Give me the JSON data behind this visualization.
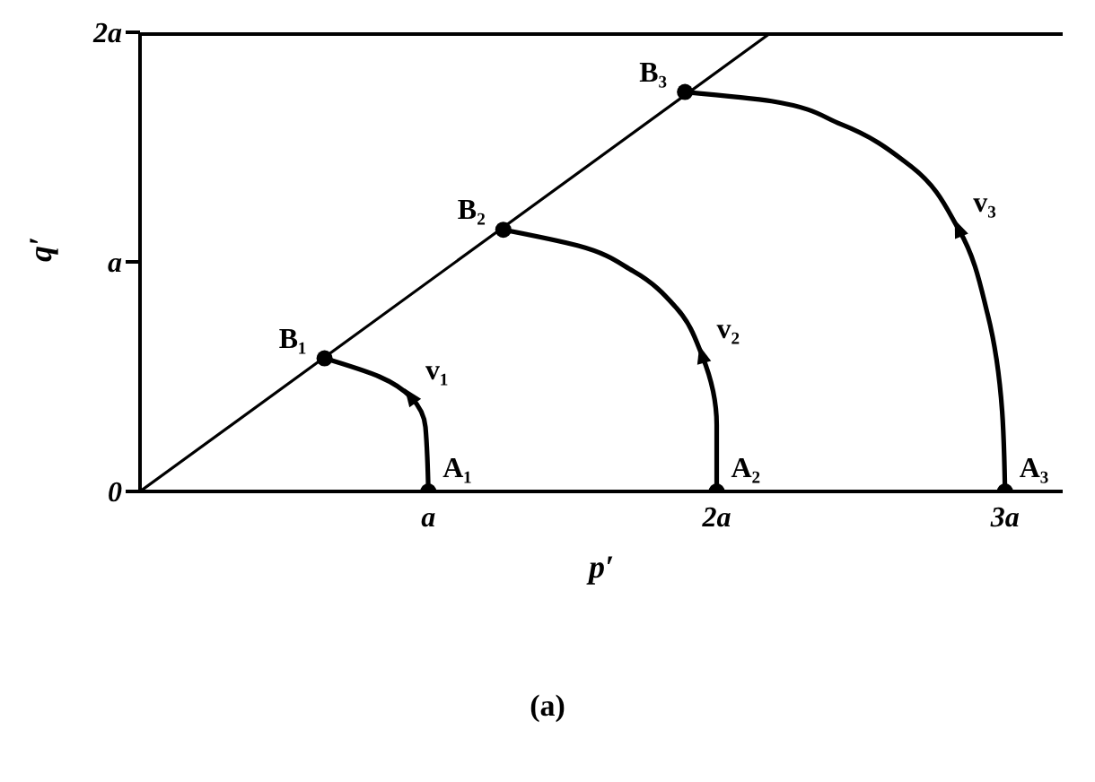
{
  "chart_data": {
    "type": "line",
    "xlabel": "p′",
    "ylabel": "q′",
    "xlim": [
      0,
      3.2
    ],
    "ylim": [
      0,
      2
    ],
    "xticks": [
      {
        "value": 0,
        "label": null
      },
      {
        "value": 1,
        "label": "a"
      },
      {
        "value": 2,
        "label": "2a"
      },
      {
        "value": 3,
        "label": "3a"
      }
    ],
    "yticks": [
      {
        "value": 0,
        "label": "0"
      },
      {
        "value": 1,
        "label": "a"
      },
      {
        "value": 2,
        "label": "2a"
      }
    ],
    "marker": "none",
    "line_style": "solid",
    "series": [
      {
        "color": "#000000",
        "x": [
          0,
          2.19
        ],
        "values": [
          0,
          2.0
        ]
      },
      {
        "color": "#000000",
        "x": [
          1,
          0.99,
          0.94,
          0.83,
          0.64
        ],
        "values": [
          0,
          0.28,
          0.41,
          0.5,
          0.58
        ]
      },
      {
        "color": "#000000",
        "x": [
          2,
          2,
          1.95,
          1.86,
          1.71,
          1.52,
          1.26
        ],
        "values": [
          0,
          0.29,
          0.59,
          0.8,
          0.96,
          1.07,
          1.14
        ]
      },
      {
        "color": "#000000",
        "x": [
          3,
          2.99,
          2.94,
          2.84,
          2.67,
          2.43,
          2.19,
          1.89
        ],
        "values": [
          0,
          0.35,
          0.77,
          1.14,
          1.42,
          1.6,
          1.7,
          1.74
        ]
      },
      {
        "type": "scatter",
        "marker": "circle",
        "color": "#000000",
        "x": [
          1,
          2,
          3,
          0.64,
          1.26,
          1.89
        ],
        "values": [
          0,
          0,
          0,
          0.58,
          1.14,
          1.74
        ]
      }
    ],
    "annotations": [
      {
        "text": "A₁",
        "x": 1,
        "y": 0
      },
      {
        "text": "A₂",
        "x": 2,
        "y": 0
      },
      {
        "text": "A₃",
        "x": 3,
        "y": 0
      },
      {
        "text": "B₁",
        "x": 0.64,
        "y": 0.58
      },
      {
        "text": "B₂",
        "x": 1.26,
        "y": 1.14
      },
      {
        "text": "B₃",
        "x": 1.89,
        "y": 1.74
      },
      {
        "text": "v₁",
        "x": 0.94,
        "y": 0.41
      },
      {
        "text": "v₂",
        "x": 1.95,
        "y": 0.59
      },
      {
        "text": "v₃",
        "x": 2.84,
        "y": 1.14
      },
      "(a)"
    ]
  }
}
